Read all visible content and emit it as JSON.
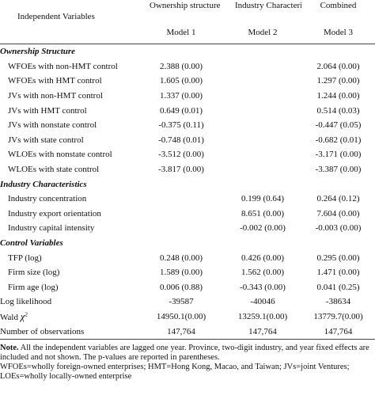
{
  "header": {
    "first": "Independent  Variables",
    "columns": [
      {
        "name": "Ownership structure",
        "model": "Model 1"
      },
      {
        "name": "Industry Characteristics",
        "model": "Model 2"
      },
      {
        "name": "Combined",
        "model": "Model 3"
      }
    ]
  },
  "sections": [
    {
      "title": "Ownership Structure",
      "rows": [
        {
          "label": "WFOEs with non-HMT control",
          "values": [
            "2.388 (0.00)",
            null,
            "2.064 (0.00)"
          ]
        },
        {
          "label": "WFOEs with HMT control",
          "values": [
            "1.605 (0.00)",
            null,
            "1.297 (0.00)"
          ]
        },
        {
          "label": "JVs with non-HMT control",
          "values": [
            "1.337 (0.00)",
            null,
            "1.244 (0.00)"
          ]
        },
        {
          "label": "JVs with HMT control",
          "values": [
            "0.649 (0.01)",
            null,
            "0.514 (0.03)"
          ]
        },
        {
          "label": "JVs with nonstate control",
          "values": [
            "-0.375 (0.11)",
            null,
            "-0.447 (0.05)"
          ]
        },
        {
          "label": "JVs with state control",
          "values": [
            "-0.748 (0.01)",
            null,
            "-0.682 (0.01)"
          ]
        },
        {
          "label": "WLOEs with nonstate control",
          "values": [
            "-3.512 (0.00)",
            null,
            "-3.171 (0.00)"
          ]
        },
        {
          "label": "WLOEs with state control",
          "values": [
            "-3.817 (0.00)",
            null,
            "-3.387 (0.00)"
          ]
        }
      ]
    },
    {
      "title": "Industry Characteristics",
      "rows": [
        {
          "label": "Industry concentration",
          "values": [
            null,
            "0.199 (0.64)",
            "0.264 (0.12)"
          ]
        },
        {
          "label": "Industry export orientation",
          "values": [
            null,
            "8.651 (0.00)",
            "7.604 (0.00)"
          ]
        },
        {
          "label": "Industry capital intensity",
          "values": [
            null,
            "-0.002 (0.00)",
            "-0.003 (0.00)"
          ]
        }
      ]
    },
    {
      "title": "Control Variables",
      "rows": [
        {
          "label": "TFP (log)",
          "values": [
            "0.248 (0.00)",
            "0.426 (0.00)",
            "0.295 (0.00)"
          ]
        },
        {
          "label": "Firm size (log)",
          "values": [
            "1.589 (0.00)",
            "1.562 (0.00)",
            "1.471 (0.00)"
          ]
        },
        {
          "label": "Firm age (log)",
          "values": [
            "0.006 (0.88)",
            "-0.343 (0.00)",
            "0.041 (0.25)"
          ]
        }
      ]
    }
  ],
  "stats": [
    {
      "label": "Log likelihood",
      "values": [
        "-39587",
        "-40046",
        "-38634"
      ]
    },
    {
      "label": "Wald",
      "symbol": "χ",
      "sup": "2",
      "values": [
        "14950.1(0.00)",
        "13259.1(0.00)",
        "13779.7(0.00)"
      ]
    },
    {
      "label": "Number of observations",
      "values": [
        "147,764",
        "147,764",
        "147,764"
      ]
    }
  ],
  "note": {
    "lead": "Note.",
    "lines": [
      "All the independent variables are lagged one year. Province, two-digit industry, and year fixed effects are included and not shown. The p-values are reported in parentheses.",
      "WFOEs=wholly foreign-owned enterprises; HMT=Hong Kong, Macao, and Taiwan; JVs=joint Ventures;",
      "LOEs=wholly locally-owned enterprise"
    ]
  }
}
